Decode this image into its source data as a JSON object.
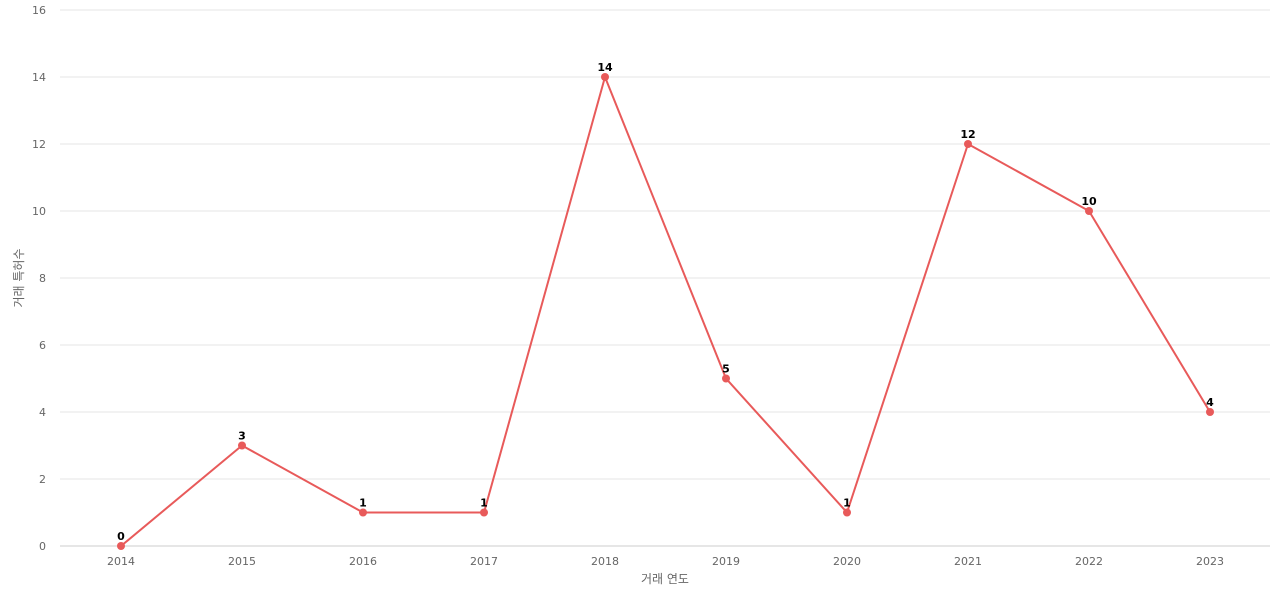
{
  "chart_data": {
    "type": "line",
    "title": "",
    "xlabel": "거래 연도",
    "ylabel": "거래 특허수",
    "x": [
      "2014",
      "2015",
      "2016",
      "2017",
      "2018",
      "2019",
      "2020",
      "2021",
      "2022",
      "2023"
    ],
    "series": [
      {
        "values": [
          0,
          3,
          1,
          1,
          14,
          5,
          1,
          12,
          10,
          4
        ],
        "color": "#e85a5a"
      }
    ],
    "ylim": [
      0,
      16
    ],
    "yticks": [
      0,
      2,
      4,
      6,
      8,
      10,
      12,
      14,
      16
    ],
    "grid": true,
    "gridColor": "#e6e6e6",
    "show_data_labels": true
  }
}
